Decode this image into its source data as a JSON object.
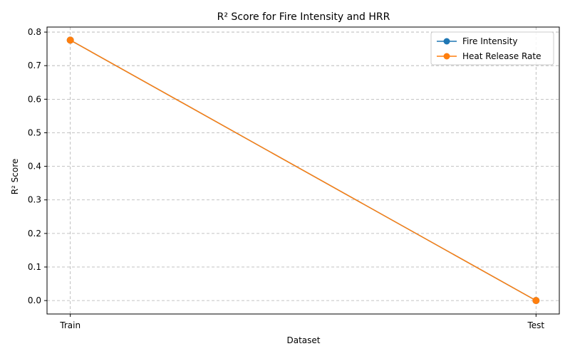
{
  "chart_data": {
    "type": "line",
    "title": "R² Score for Fire Intensity and HRR",
    "xlabel": "Dataset",
    "ylabel": "R² Score",
    "categories": [
      "Train",
      "Test"
    ],
    "series": [
      {
        "name": "Fire Intensity",
        "values": [
          0.776,
          0.0
        ],
        "color": "#1f77b4"
      },
      {
        "name": "Heat Release Rate",
        "values": [
          0.776,
          0.0
        ],
        "color": "#ff7f0e"
      }
    ],
    "ylim": [
      -0.04,
      0.815
    ],
    "yticks": [
      0.0,
      0.1,
      0.2,
      0.3,
      0.4,
      0.5,
      0.6,
      0.7,
      0.8
    ],
    "ytick_labels": [
      "0.0",
      "0.1",
      "0.2",
      "0.3",
      "0.4",
      "0.5",
      "0.6",
      "0.7",
      "0.8"
    ],
    "grid": true,
    "legend_position": "top-right",
    "marker": "circle"
  }
}
